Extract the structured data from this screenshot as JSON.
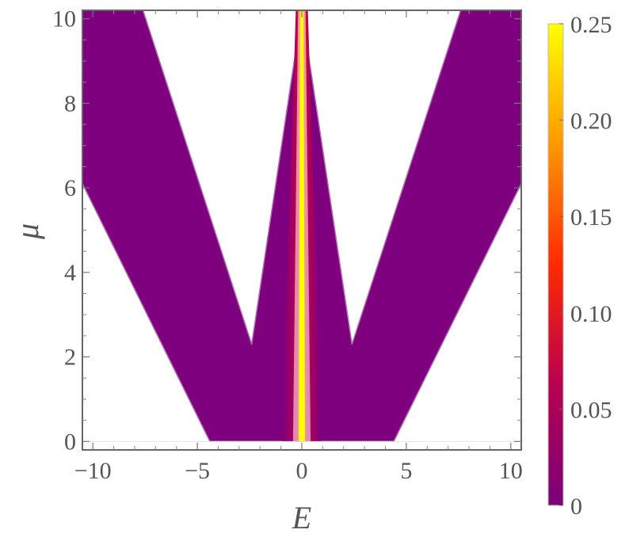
{
  "chart_data": {
    "type": "heatmap",
    "title": "",
    "xlabel": "E",
    "ylabel": "μ",
    "xlim": [
      -10.5,
      10.5
    ],
    "ylim": [
      -0.2,
      10.2
    ],
    "x_ticks": [
      {
        "value": -10,
        "label": "−10"
      },
      {
        "value": -5,
        "label": "−5"
      },
      {
        "value": 0,
        "label": "0"
      },
      {
        "value": 5,
        "label": "5"
      },
      {
        "value": 10,
        "label": "10"
      }
    ],
    "y_ticks": [
      {
        "value": 0,
        "label": "0"
      },
      {
        "value": 2,
        "label": "2"
      },
      {
        "value": 4,
        "label": "4"
      },
      {
        "value": 6,
        "label": "6"
      },
      {
        "value": 8,
        "label": "8"
      },
      {
        "value": 10,
        "label": "10"
      }
    ],
    "colorbar": {
      "range": [
        0,
        0.25
      ],
      "ticks": [
        {
          "value": 0,
          "label": "0"
        },
        {
          "value": 0.05,
          "label": "0.05"
        },
        {
          "value": 0.1,
          "label": "0.10"
        },
        {
          "value": 0.15,
          "label": "0.15"
        },
        {
          "value": 0.2,
          "label": "0.20"
        },
        {
          "value": 0.25,
          "label": "0.25"
        }
      ],
      "colors": [
        "#7a007a",
        "#b8004f",
        "#ff2a00",
        "#ff9800",
        "#ffff00"
      ]
    },
    "region": {
      "outer_edge": [
        [
          0,
          4.4
        ],
        [
          10.2,
          10.5
        ],
        [
          6.1,
          10.5
        ]
      ],
      "inner_notch_apex": [
        2.3,
        2.4
      ],
      "inner_notch_top": [
        10.2,
        7.6
      ],
      "central_spike_halfwidth": [
        [
          0,
          0.42
        ],
        [
          10.2,
          0.18
        ]
      ]
    },
    "background_color": "#7f007f"
  }
}
